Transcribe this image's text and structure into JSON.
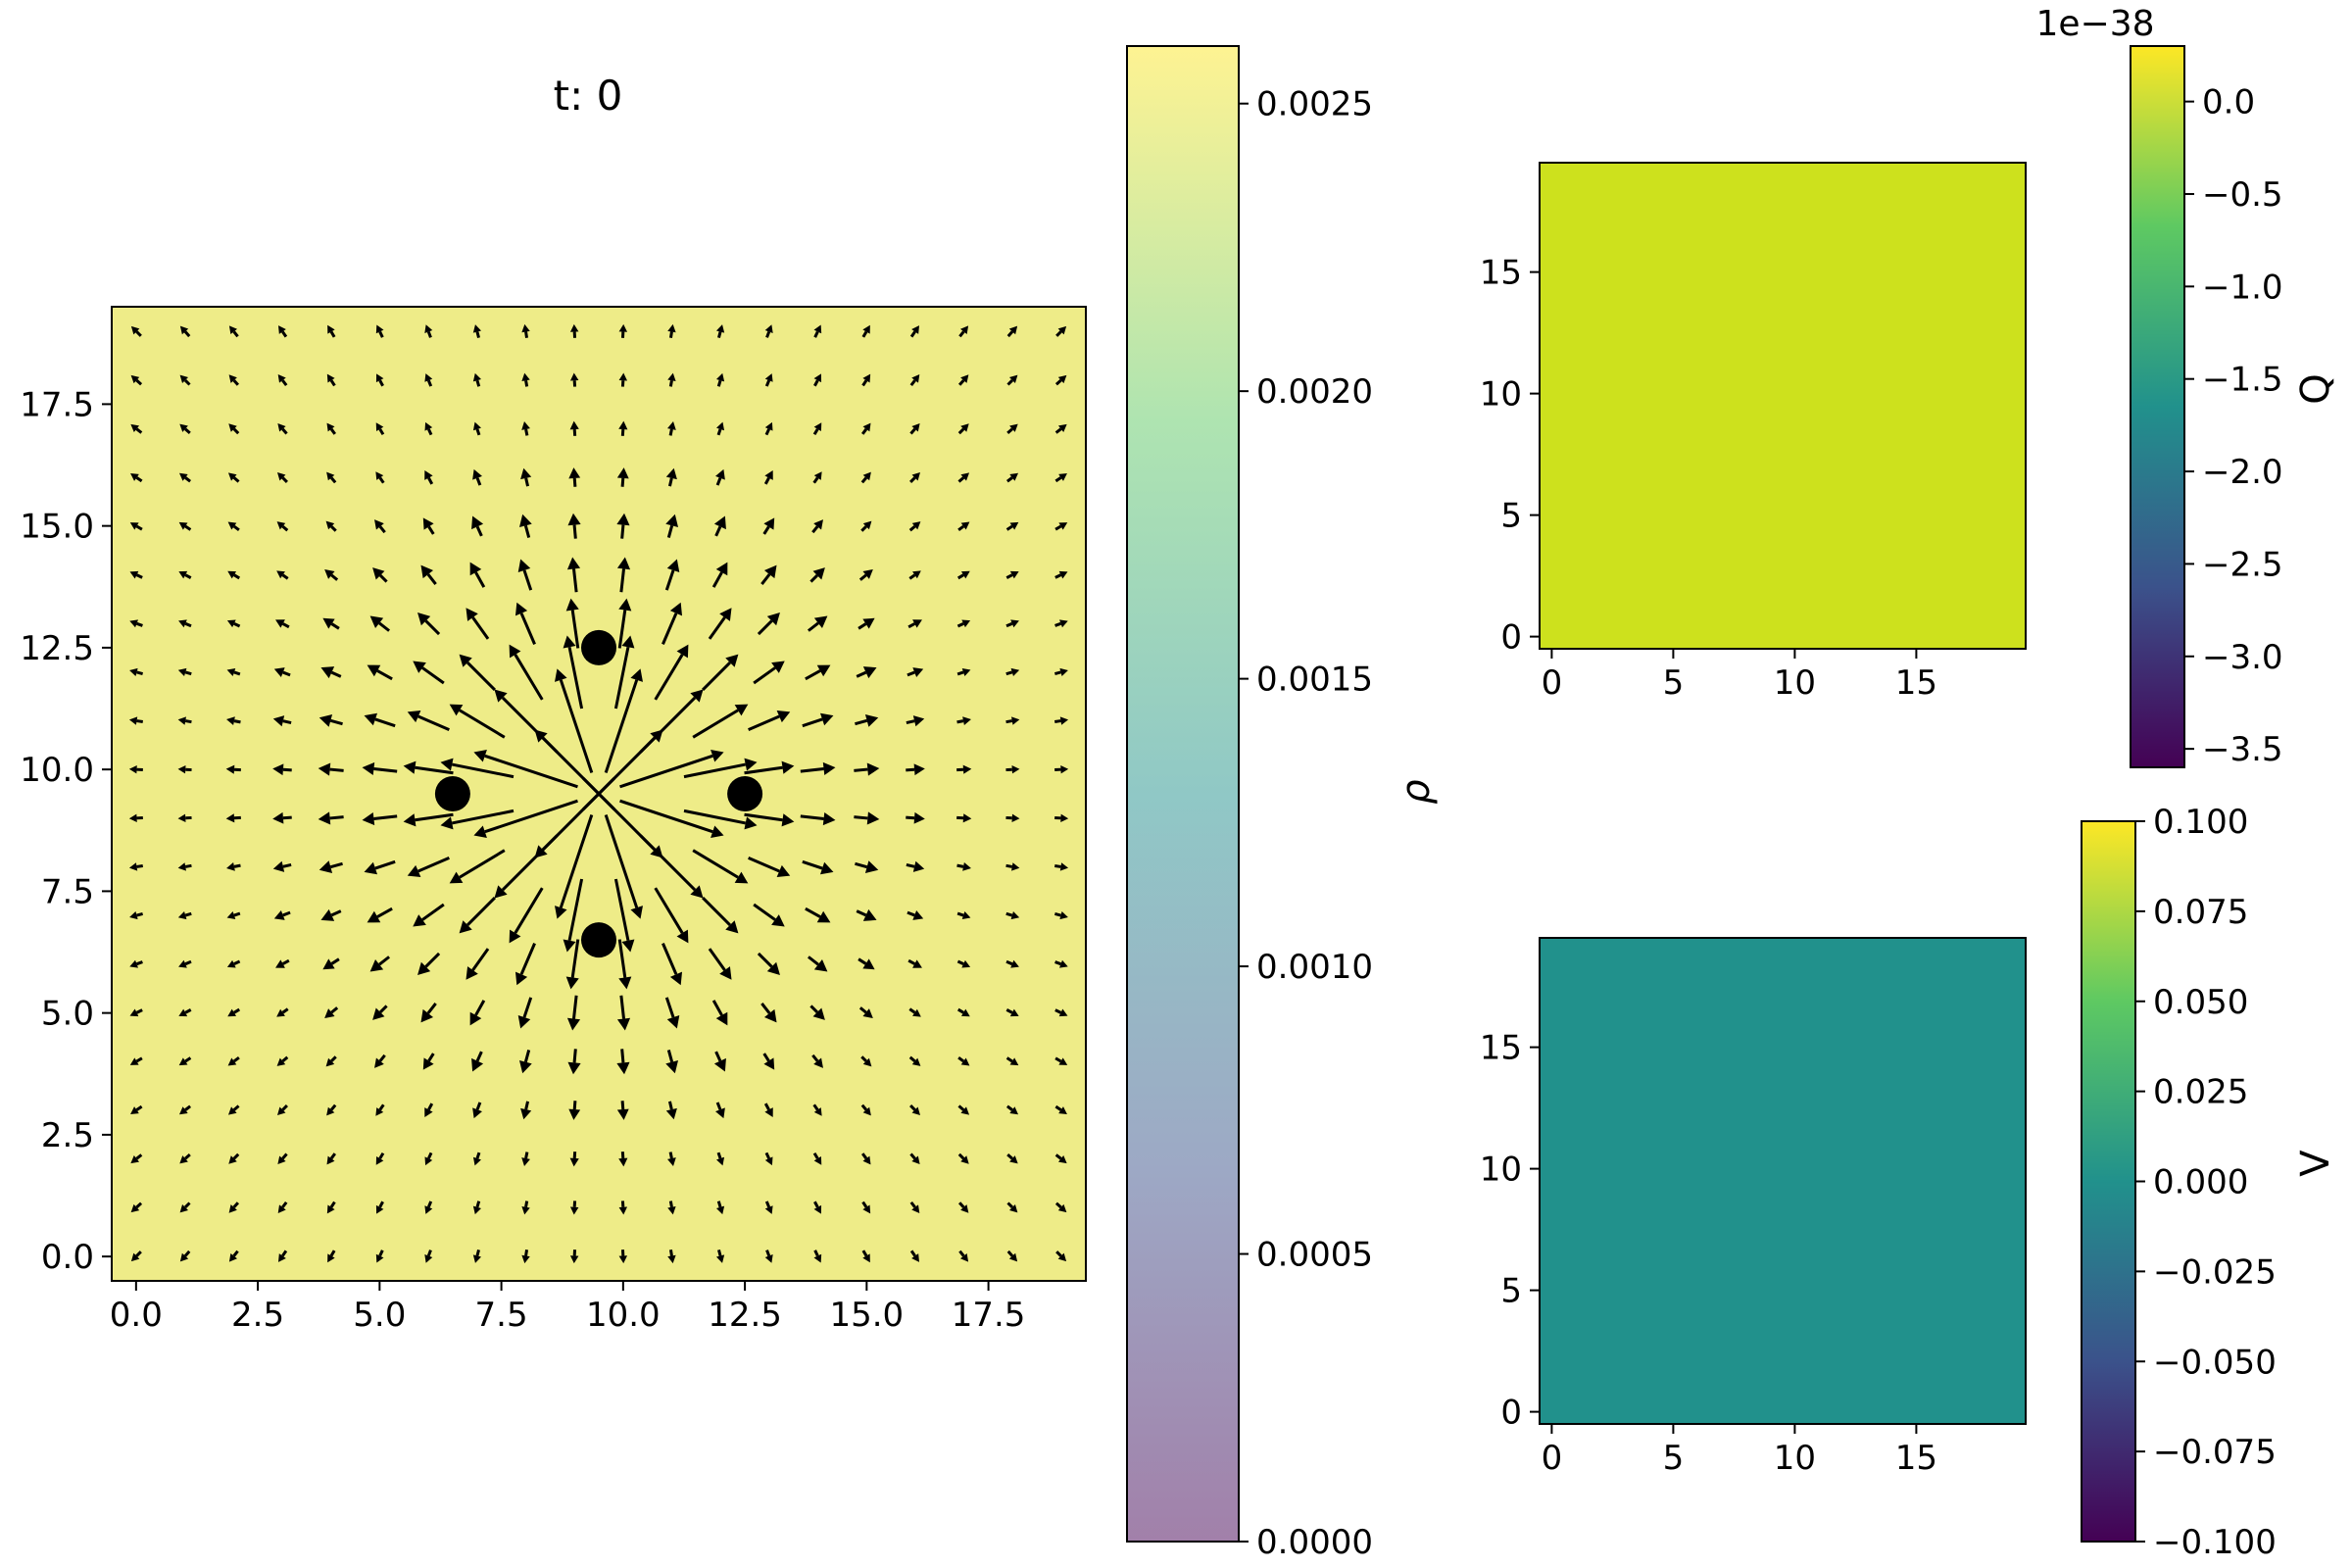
{
  "chart_data": [
    {
      "type": "heatmap",
      "id": "density-quiver",
      "title": "t: 0",
      "xlabel": "",
      "ylabel": "",
      "xlim": [
        -0.5,
        19.5
      ],
      "ylim": [
        -0.5,
        19.5
      ],
      "xticks": [
        0.0,
        2.5,
        5.0,
        7.5,
        10.0,
        12.5,
        15.0,
        17.5
      ],
      "xtick_labels": [
        "0.0",
        "2.5",
        "5.0",
        "7.5",
        "10.0",
        "12.5",
        "15.0",
        "17.5"
      ],
      "yticks": [
        0.0,
        2.5,
        5.0,
        7.5,
        10.0,
        12.5,
        15.0,
        17.5
      ],
      "ytick_labels": [
        "0.0",
        "2.5",
        "5.0",
        "7.5",
        "10.0",
        "12.5",
        "15.0",
        "17.5"
      ],
      "field_value": 0.0026,
      "field_color": "#eeec88",
      "grid": false,
      "quiver": {
        "grid_x": [
          0,
          1,
          2,
          3,
          4,
          5,
          6,
          7,
          8,
          9,
          10,
          11,
          12,
          13,
          14,
          15,
          16,
          17,
          18,
          19
        ],
        "grid_y": [
          0,
          1,
          2,
          3,
          4,
          5,
          6,
          7,
          8,
          9,
          10,
          11,
          12,
          13,
          14,
          15,
          16,
          17,
          18,
          19
        ],
        "center": [
          9.5,
          9.5
        ],
        "direction": "outward",
        "color": "#000000"
      },
      "particles": [
        {
          "x": 9.5,
          "y": 12.5
        },
        {
          "x": 6.5,
          "y": 9.5
        },
        {
          "x": 12.5,
          "y": 9.5
        },
        {
          "x": 9.5,
          "y": 6.5
        }
      ],
      "colorbar": {
        "label": "ρ",
        "min": 0.0,
        "max": 0.0026,
        "ticks": [
          0.0,
          0.0005,
          0.001,
          0.0015,
          0.002,
          0.0025
        ],
        "tick_labels": [
          "0.0000",
          "0.0005",
          "0.0010",
          "0.0015",
          "0.0020",
          "0.0025"
        ],
        "cmap": "viridis",
        "alpha": 0.5
      }
    },
    {
      "type": "heatmap",
      "id": "charge-map",
      "xlim": [
        -0.5,
        19.5
      ],
      "ylim": [
        -0.5,
        19.5
      ],
      "xticks": [
        0,
        5,
        10,
        15
      ],
      "xtick_labels": [
        "0",
        "5",
        "10",
        "15"
      ],
      "yticks": [
        0,
        5,
        10,
        15
      ],
      "ytick_labels": [
        "0",
        "5",
        "10",
        "15"
      ],
      "field_value": 0.0,
      "field_color": "#cde11d",
      "colorbar": {
        "label": "Q",
        "offset_text": "1e−38",
        "min": -3.6,
        "max": 0.3,
        "ticks": [
          0.0,
          -0.5,
          -1.0,
          -1.5,
          -2.0,
          -2.5,
          -3.0,
          -3.5
        ],
        "tick_labels": [
          "0.0",
          "−0.5",
          "−1.0",
          "−1.5",
          "−2.0",
          "−2.5",
          "−3.0",
          "−3.5"
        ],
        "cmap": "viridis"
      }
    },
    {
      "type": "heatmap",
      "id": "potential-map",
      "xlim": [
        -0.5,
        19.5
      ],
      "ylim": [
        -0.5,
        19.5
      ],
      "xticks": [
        0,
        5,
        10,
        15
      ],
      "xtick_labels": [
        "0",
        "5",
        "10",
        "15"
      ],
      "yticks": [
        0,
        5,
        10,
        15
      ],
      "ytick_labels": [
        "0",
        "5",
        "10",
        "15"
      ],
      "field_value": 0.0,
      "field_color": "#21918c",
      "colorbar": {
        "label": "V",
        "min": -0.1,
        "max": 0.1,
        "ticks": [
          0.1,
          0.075,
          0.05,
          0.025,
          0.0,
          -0.025,
          -0.05,
          -0.075,
          -0.1
        ],
        "tick_labels": [
          "0.100",
          "0.075",
          "0.050",
          "0.025",
          "0.000",
          "−0.025",
          "−0.050",
          "−0.075",
          "−0.100"
        ],
        "cmap": "viridis"
      }
    }
  ]
}
